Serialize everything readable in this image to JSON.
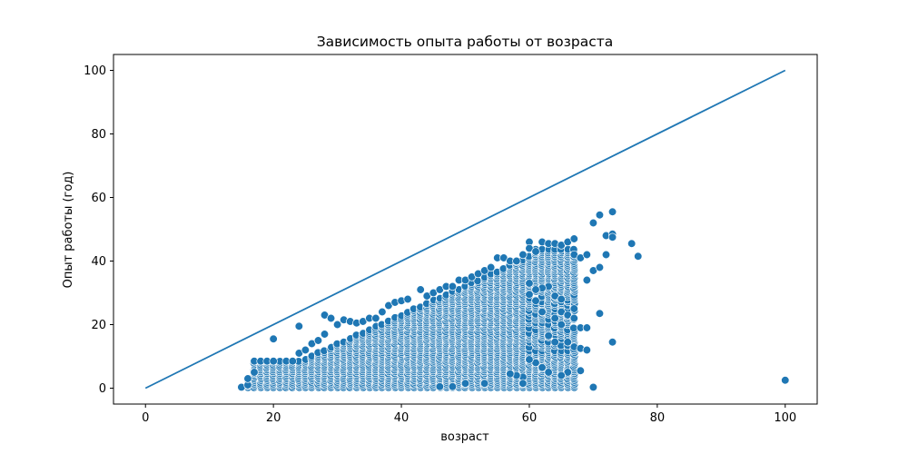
{
  "chart_data": {
    "type": "scatter",
    "title": "Зависимость опыта работы от возраста",
    "xlabel": "возраст",
    "ylabel": "Опыт работы (год)",
    "xlim": [
      -5,
      105
    ],
    "ylim": [
      -5,
      105
    ],
    "xticks": [
      0,
      20,
      40,
      60,
      80,
      100
    ],
    "yticks": [
      0,
      20,
      40,
      60,
      80,
      100
    ],
    "grid": false,
    "colors": {
      "point": "#1f77b4",
      "line": "#1f77b4",
      "point_edge": "#ffffff"
    },
    "reference_line": {
      "x": [
        0,
        100
      ],
      "y": [
        0,
        100
      ]
    },
    "bands": [
      {
        "x": [
          17,
          24
        ],
        "y_ranges": [
          [
            0,
            2
          ],
          [
            0,
            8.5
          ]
        ]
      },
      {
        "x": [
          25,
          39
        ],
        "y_ranges": [
          [
            0,
            2
          ],
          [
            0,
            0.9
          ]
        ]
      },
      {
        "x": [
          40,
          55
        ],
        "y_ranges": [
          [
            0,
            2
          ],
          [
            0,
            0.62
          ]
        ]
      },
      {
        "x": [
          56,
          66
        ],
        "y_ranges": [
          [
            5,
            42
          ],
          [
            1.7,
            0.5
          ]
        ]
      }
    ],
    "points": [
      {
        "x": 15,
        "y": 0.3
      },
      {
        "x": 16,
        "y": 1
      },
      {
        "x": 16,
        "y": 3
      },
      {
        "x": 17,
        "y": 5
      },
      {
        "x": 17,
        "y": 8.5
      },
      {
        "x": 18,
        "y": 8.5
      },
      {
        "x": 19,
        "y": 8.5
      },
      {
        "x": 20,
        "y": 15.5
      },
      {
        "x": 20,
        "y": 8.5
      },
      {
        "x": 22,
        "y": 8.5
      },
      {
        "x": 23,
        "y": 8.5
      },
      {
        "x": 24,
        "y": 19.5
      },
      {
        "x": 24,
        "y": 11
      },
      {
        "x": 25,
        "y": 12
      },
      {
        "x": 26,
        "y": 14
      },
      {
        "x": 27,
        "y": 15
      },
      {
        "x": 28,
        "y": 17
      },
      {
        "x": 28,
        "y": 23
      },
      {
        "x": 29,
        "y": 22
      },
      {
        "x": 30,
        "y": 20
      },
      {
        "x": 31,
        "y": 21.5
      },
      {
        "x": 32,
        "y": 21
      },
      {
        "x": 33,
        "y": 20.5
      },
      {
        "x": 34,
        "y": 21
      },
      {
        "x": 35,
        "y": 22
      },
      {
        "x": 36,
        "y": 22
      },
      {
        "x": 37,
        "y": 24
      },
      {
        "x": 38,
        "y": 26
      },
      {
        "x": 39,
        "y": 27
      },
      {
        "x": 40,
        "y": 27.5
      },
      {
        "x": 41,
        "y": 28
      },
      {
        "x": 43,
        "y": 31
      },
      {
        "x": 44,
        "y": 29
      },
      {
        "x": 45,
        "y": 30
      },
      {
        "x": 46,
        "y": 31
      },
      {
        "x": 47,
        "y": 32
      },
      {
        "x": 48,
        "y": 32
      },
      {
        "x": 49,
        "y": 34
      },
      {
        "x": 50,
        "y": 34
      },
      {
        "x": 51,
        "y": 35
      },
      {
        "x": 52,
        "y": 36
      },
      {
        "x": 53,
        "y": 37
      },
      {
        "x": 54,
        "y": 38
      },
      {
        "x": 55,
        "y": 41
      },
      {
        "x": 56,
        "y": 41
      },
      {
        "x": 57,
        "y": 40
      },
      {
        "x": 58,
        "y": 40
      },
      {
        "x": 59,
        "y": 42
      },
      {
        "x": 60,
        "y": 46
      },
      {
        "x": 60,
        "y": 44
      },
      {
        "x": 61,
        "y": 43
      },
      {
        "x": 62,
        "y": 46
      },
      {
        "x": 63,
        "y": 45.5
      },
      {
        "x": 64,
        "y": 45.5
      },
      {
        "x": 65,
        "y": 45
      },
      {
        "x": 66,
        "y": 46
      },
      {
        "x": 67,
        "y": 47
      },
      {
        "x": 67,
        "y": 42
      },
      {
        "x": 68,
        "y": 41
      },
      {
        "x": 69,
        "y": 42
      },
      {
        "x": 69,
        "y": 34
      },
      {
        "x": 70,
        "y": 37
      },
      {
        "x": 70,
        "y": 52
      },
      {
        "x": 71,
        "y": 54.5
      },
      {
        "x": 71,
        "y": 38
      },
      {
        "x": 71,
        "y": 23.5
      },
      {
        "x": 72,
        "y": 48
      },
      {
        "x": 72,
        "y": 42
      },
      {
        "x": 73,
        "y": 55.5
      },
      {
        "x": 73,
        "y": 48.5
      },
      {
        "x": 73,
        "y": 47.5
      },
      {
        "x": 73,
        "y": 14.5
      },
      {
        "x": 76,
        "y": 45.5
      },
      {
        "x": 77,
        "y": 41.5
      },
      {
        "x": 100,
        "y": 2.5
      },
      {
        "x": 70,
        "y": 0.3
      },
      {
        "x": 68,
        "y": 5.5
      },
      {
        "x": 66,
        "y": 5
      },
      {
        "x": 65,
        "y": 4
      },
      {
        "x": 63,
        "y": 5
      },
      {
        "x": 62,
        "y": 6.5
      },
      {
        "x": 61,
        "y": 8
      },
      {
        "x": 60,
        "y": 9
      },
      {
        "x": 59,
        "y": 3.5
      },
      {
        "x": 59,
        "y": 1.5
      },
      {
        "x": 58,
        "y": 4
      },
      {
        "x": 57,
        "y": 4.5
      },
      {
        "x": 53,
        "y": 1.5
      },
      {
        "x": 50,
        "y": 1.5
      },
      {
        "x": 48,
        "y": 0.5
      },
      {
        "x": 46,
        "y": 0.5
      },
      {
        "x": 63,
        "y": 32
      },
      {
        "x": 64,
        "y": 29
      },
      {
        "x": 65,
        "y": 28
      },
      {
        "x": 65,
        "y": 24
      },
      {
        "x": 65,
        "y": 20
      },
      {
        "x": 66,
        "y": 23
      },
      {
        "x": 67,
        "y": 25
      },
      {
        "x": 67,
        "y": 22
      },
      {
        "x": 67,
        "y": 13
      },
      {
        "x": 68,
        "y": 19
      },
      {
        "x": 68,
        "y": 12.5
      },
      {
        "x": 69,
        "y": 12
      },
      {
        "x": 69,
        "y": 19
      },
      {
        "x": 66,
        "y": 14.5
      },
      {
        "x": 64,
        "y": 22
      },
      {
        "x": 64,
        "y": 14.5
      },
      {
        "x": 63,
        "y": 16.5
      },
      {
        "x": 62,
        "y": 31.5
      },
      {
        "x": 62,
        "y": 24
      },
      {
        "x": 61,
        "y": 31
      },
      {
        "x": 61,
        "y": 27.5
      },
      {
        "x": 60,
        "y": 33
      },
      {
        "x": 60,
        "y": 29.5
      }
    ]
  }
}
